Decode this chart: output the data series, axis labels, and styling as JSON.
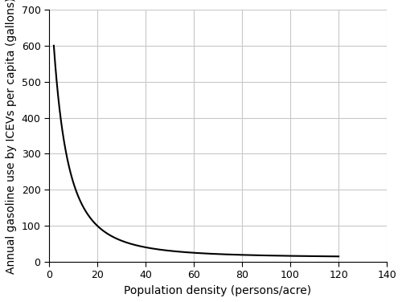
{
  "xlabel": "Population density (persons/acre)",
  "ylabel": "Annual gasoline use by ICEVs per capita (gallons)",
  "xlim": [
    0,
    140
  ],
  "ylim": [
    0,
    700
  ],
  "xticks": [
    0,
    20,
    40,
    60,
    80,
    100,
    120,
    140
  ],
  "yticks": [
    0,
    100,
    200,
    300,
    400,
    500,
    600,
    700
  ],
  "curve_color": "#000000",
  "curve_linewidth": 1.5,
  "background_color": "#ffffff",
  "grid_color": "#c8c8c8",
  "curve_a": 1200,
  "curve_c": 1.0,
  "curve_n": 1.2,
  "curve_d": 5.0,
  "curve_x_start": 2.0,
  "curve_x_end": 120.0
}
